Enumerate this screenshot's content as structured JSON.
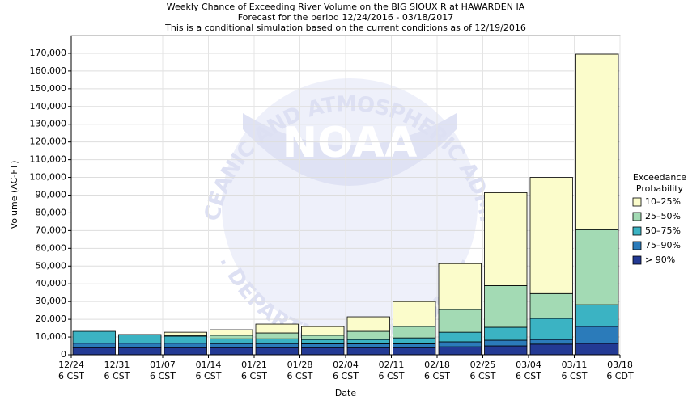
{
  "chart_data": {
    "type": "stacked_bar",
    "title": [
      "Weekly Chance of Exceeding River Volume on the BIG SIOUX R at HAWARDEN IA",
      "Forecast for the period 12/24/2016 - 03/18/2017",
      "This is a conditional simulation based on the current conditions as of 12/19/2016"
    ],
    "x_label": "Date",
    "y_label": "Volume (AC-FT)",
    "watermark": {
      "logo": "NOAA",
      "ring_top": "NATIONAL OCEANIC AND ATMOSPHERIC ADMINISTRATION",
      "ring_bottom": "U.S. DEPARTMENT OF COMMERCE"
    },
    "x_ticks": [
      {
        "date": "12/24",
        "zone": "6 CST"
      },
      {
        "date": "12/31",
        "zone": "6 CST"
      },
      {
        "date": "01/07",
        "zone": "6 CST"
      },
      {
        "date": "01/14",
        "zone": "6 CST"
      },
      {
        "date": "01/21",
        "zone": "6 CST"
      },
      {
        "date": "01/28",
        "zone": "6 CST"
      },
      {
        "date": "02/04",
        "zone": "6 CST"
      },
      {
        "date": "02/11",
        "zone": "6 CST"
      },
      {
        "date": "02/18",
        "zone": "6 CST"
      },
      {
        "date": "02/25",
        "zone": "6 CST"
      },
      {
        "date": "03/04",
        "zone": "6 CST"
      },
      {
        "date": "03/11",
        "zone": "6 CST"
      },
      {
        "date": "03/18",
        "zone": "6 CDT"
      }
    ],
    "categories": [
      null,
      null,
      null,
      null,
      null,
      null,
      null,
      null,
      null,
      null,
      null,
      null
    ],
    "legend_title": [
      "Exceedance",
      "Probability"
    ],
    "series": [
      {
        "name": "> 90%",
        "color": "#233a94",
        "values": [
          4000,
          4000,
          4000,
          4000,
          4000,
          4000,
          4000,
          4000,
          4500,
          5000,
          6000,
          6400
        ]
      },
      {
        "name": "75–90%",
        "color": "#2b7bba",
        "values": [
          2500,
          2500,
          2500,
          2300,
          2300,
          2200,
          2200,
          2200,
          2800,
          3200,
          2600,
          9600
        ]
      },
      {
        "name": "50–75%",
        "color": "#3bb3c3",
        "values": [
          6700,
          4900,
          4000,
          2700,
          2700,
          2400,
          2400,
          3300,
          5400,
          7300,
          11900,
          12200
        ]
      },
      {
        "name": "25–50%",
        "color": "#a3dab4",
        "values": [
          0,
          0,
          500,
          2000,
          3300,
          2400,
          4600,
          6500,
          12800,
          23500,
          14000,
          42300
        ]
      },
      {
        "name": "10–25%",
        "color": "#fbfccb",
        "values": [
          0,
          0,
          1700,
          3100,
          5000,
          4900,
          8200,
          14000,
          25900,
          52400,
          65500,
          99000
        ]
      }
    ],
    "ylim": [
      0,
      180000
    ],
    "yticks": [
      0,
      {
        "value": 10000,
        "label": "10,000"
      },
      {
        "value": 20000,
        "label": "20,000"
      },
      {
        "value": 30000,
        "label": "30,000"
      },
      {
        "value": 40000,
        "label": "40,000"
      },
      {
        "value": 50000,
        "label": "50,000"
      },
      {
        "value": 60000,
        "label": "60,000"
      },
      {
        "value": 70000,
        "label": "70,000"
      },
      {
        "value": 80000,
        "label": "80,000"
      },
      {
        "value": 90000,
        "label": "90,000"
      },
      {
        "value": 100000,
        "label": "100,000"
      },
      {
        "value": 110000,
        "label": "110,000"
      },
      {
        "value": 120000,
        "label": "120,000"
      },
      {
        "value": 130000,
        "label": "130,000"
      },
      {
        "value": 140000,
        "label": "140,000"
      },
      {
        "value": 150000,
        "label": "150,000"
      },
      {
        "value": 160000,
        "label": "160,000"
      },
      {
        "value": 170000,
        "label": "170,000"
      }
    ],
    "grid": true
  }
}
